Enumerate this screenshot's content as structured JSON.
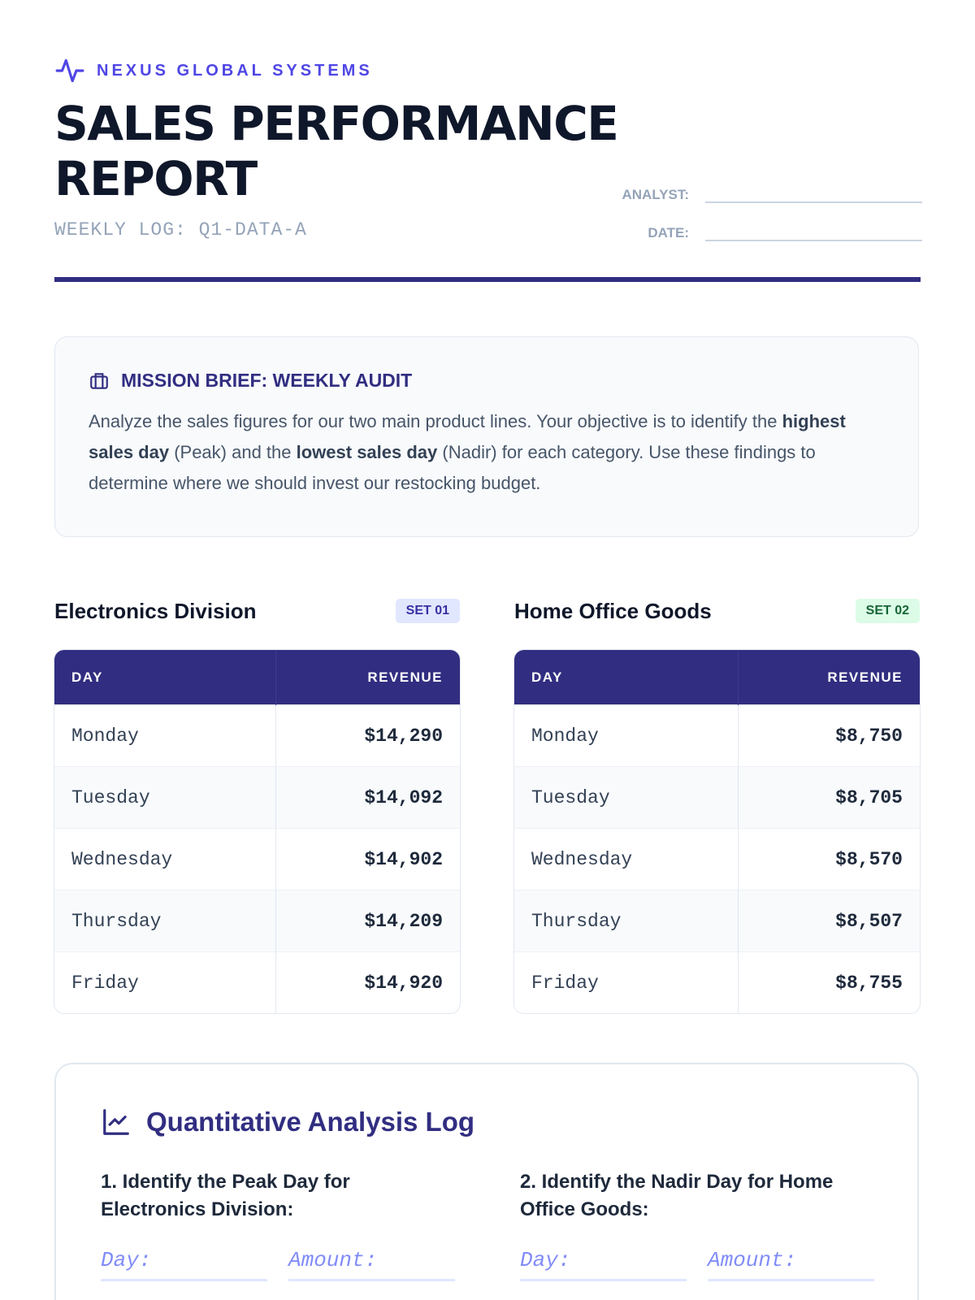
{
  "header": {
    "brand": "NEXUS GLOBAL SYSTEMS",
    "title": "SALES PERFORMANCE REPORT",
    "subtitle": "WEEKLY LOG: Q1-DATA-A",
    "fields": [
      "ANALYST:",
      "DATE:"
    ]
  },
  "brief": {
    "title": "MISSION BRIEF: WEEKLY AUDIT",
    "paragraph": [
      "Analyze the sales figures for our two main product lines. Your objective is to identify the ",
      "highest sales day",
      " (Peak) and the ",
      "lowest sales day",
      " (Nadir) for each category. Use these findings to determine where we should invest our restocking budget."
    ]
  },
  "tables": [
    {
      "title": "Electronics Division",
      "badge": "SET 01",
      "columns": [
        "DAY",
        "REVENUE"
      ],
      "rows": [
        [
          "Monday",
          "$14,290"
        ],
        [
          "Tuesday",
          "$14,092"
        ],
        [
          "Wednesday",
          "$14,902"
        ],
        [
          "Thursday",
          "$14,209"
        ],
        [
          "Friday",
          "$14,920"
        ]
      ]
    },
    {
      "title": "Home Office Goods",
      "badge": "SET 02",
      "columns": [
        "DAY",
        "REVENUE"
      ],
      "rows": [
        [
          "Monday",
          "$8,750"
        ],
        [
          "Tuesday",
          "$8,705"
        ],
        [
          "Wednesday",
          "$8,570"
        ],
        [
          "Thursday",
          "$8,507"
        ],
        [
          "Friday",
          "$8,755"
        ]
      ]
    }
  ],
  "analysis": {
    "title": "Quantitative Analysis Log",
    "questions": [
      {
        "text": "1. Identify the Peak Day for Electronics Division:",
        "fields": [
          "Day:",
          "Amount:"
        ]
      },
      {
        "text": "2. Identify the Nadir Day for Home Office Goods:",
        "fields": [
          "Day:",
          "Amount:"
        ]
      }
    ]
  }
}
